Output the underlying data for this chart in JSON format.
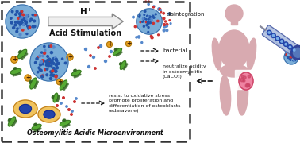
{
  "bg_color": "#ffffff",
  "box_color": "#333333",
  "title": "Osteomylitis Acidic Microenvironment",
  "arrow_label": "H⁺",
  "arrow_sublabel": "Acid Stimulation",
  "labels": {
    "disintegration": "disintegration",
    "bacterial": "bacterial",
    "neutralize": "neutralize acidity\nin osteomyelitis\n(CaCO₃)",
    "edaravone": "resist to oxidative stress\npromote proliferation and\ndifferentiation of osteoblasts\n(edaravone)"
  },
  "ms_dark": "#3a6eaa",
  "ms_light": "#7aadd8",
  "ms_dot": "#2255aa",
  "particle_red": "#cc3333",
  "particle_blue": "#5588cc",
  "bacteria_green": "#55aa33",
  "bacteria_dark": "#336622",
  "calcium_color": "#e8a020",
  "calcium_edge": "#a07010",
  "cell_outer": "#f0c055",
  "cell_outer_edge": "#c08020",
  "cell_nucleus": "#2244aa",
  "human_color": "#d8aab0",
  "wound_color": "#cc4466",
  "wound_inner": "#ee7799",
  "syringe_fill": "#aabbdd",
  "syringe_dark": "#334499",
  "syringe_dots": "#2244aa",
  "text_color": "#111111",
  "arrow_fill": "#eeeeee",
  "arrow_edge": "#888888"
}
